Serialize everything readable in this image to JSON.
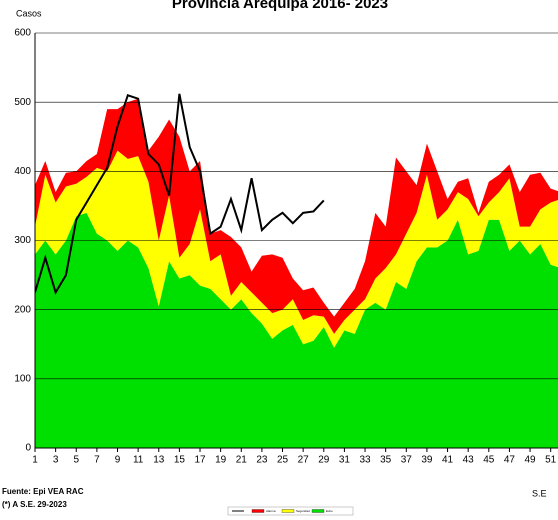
{
  "chart_data": {
    "type": "stacked_area",
    "title": "Provincia Arequipa 2016- 2023",
    "y_label": "Casos",
    "x_label": "S.E",
    "source": "Fuente: Epi VEA RAC",
    "note": "(*) A S.E. 29-2023",
    "x": [
      1,
      2,
      3,
      4,
      5,
      6,
      7,
      8,
      9,
      10,
      11,
      12,
      13,
      14,
      15,
      16,
      17,
      18,
      19,
      20,
      21,
      22,
      23,
      24,
      25,
      26,
      27,
      28,
      29,
      30,
      31,
      32,
      33,
      34,
      35,
      36,
      37,
      38,
      39,
      40,
      41,
      42,
      43,
      44,
      45,
      46,
      47,
      48,
      49,
      50,
      51,
      52
    ],
    "xlim": [
      1,
      52
    ],
    "xticks": [
      1,
      3,
      5,
      7,
      9,
      11,
      13,
      15,
      17,
      19,
      21,
      23,
      25,
      27,
      29,
      31,
      33,
      35,
      37,
      39,
      41,
      43,
      45,
      47,
      49,
      51
    ],
    "ylim": [
      0,
      600
    ],
    "yticks": [
      0,
      100,
      200,
      300,
      400,
      500,
      600
    ],
    "series": [
      {
        "name": "Exito",
        "color": "#00e000",
        "values": [
          280,
          300,
          280,
          300,
          335,
          340,
          310,
          300,
          285,
          300,
          290,
          260,
          205,
          270,
          245,
          250,
          235,
          230,
          215,
          200,
          215,
          195,
          180,
          158,
          170,
          178,
          150,
          155,
          175,
          145,
          170,
          165,
          200,
          210,
          200,
          240,
          230,
          270,
          290,
          290,
          300,
          330,
          280,
          285,
          330,
          330,
          285,
          300,
          280,
          295,
          265,
          260
        ]
      },
      {
        "name": "Seguridad",
        "color": "#ffff00",
        "values": [
          40,
          95,
          75,
          78,
          47,
          52,
          95,
          100,
          145,
          118,
          132,
          125,
          95,
          95,
          30,
          45,
          110,
          40,
          65,
          20,
          25,
          30,
          30,
          37,
          30,
          37,
          35,
          37,
          15,
          20,
          15,
          35,
          15,
          35,
          60,
          40,
          80,
          70,
          105,
          40,
          45,
          40,
          80,
          50,
          25,
          40,
          105,
          20,
          40,
          50,
          90,
          100
        ]
      },
      {
        "name": "Alarma",
        "color": "#ff0000",
        "values": [
          60,
          20,
          15,
          20,
          18,
          23,
          20,
          90,
          60,
          82,
          83,
          45,
          150,
          110,
          175,
          105,
          70,
          40,
          35,
          85,
          50,
          30,
          68,
          85,
          75,
          30,
          43,
          40,
          20,
          25,
          25,
          30,
          55,
          95,
          60,
          140,
          90,
          40,
          45,
          70,
          15,
          15,
          30,
          5,
          30,
          25,
          20,
          50,
          75,
          53,
          20,
          10
        ]
      },
      {
        "type": "line",
        "color": "#000000",
        "values": [
          225,
          275,
          225,
          250,
          330,
          355,
          380,
          405,
          465,
          510,
          505,
          425,
          410,
          365,
          512,
          435,
          400,
          310,
          320,
          360,
          315,
          390,
          315,
          330,
          340,
          325,
          340,
          342,
          358,
          null,
          null,
          null,
          null,
          null,
          null,
          null,
          null,
          null,
          null,
          null,
          null,
          null,
          null,
          null,
          null,
          null,
          null,
          null,
          null,
          null,
          null,
          null
        ]
      }
    ]
  }
}
